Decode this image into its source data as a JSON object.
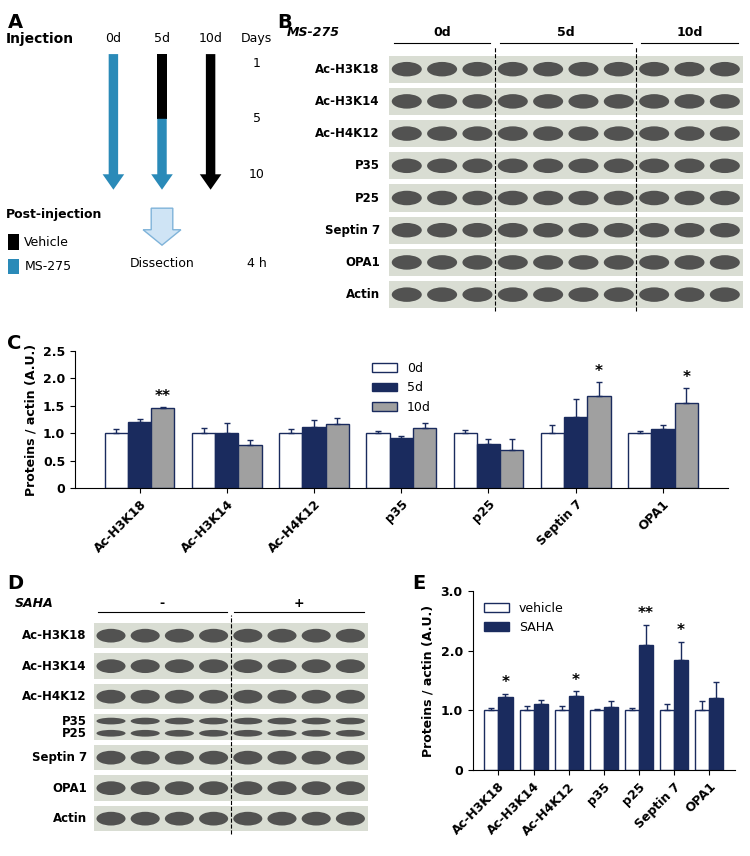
{
  "panel_labels": [
    "A",
    "B",
    "C",
    "D",
    "E"
  ],
  "diagram": {
    "injection_label": "Injection",
    "columns": [
      "0d",
      "5d",
      "10d"
    ],
    "days_label": "Days",
    "day_marks": [
      "1",
      "5",
      "10"
    ],
    "schedules": [
      [
        {
          "from": "1",
          "to": "10",
          "agent": "MS-275"
        }
      ],
      [
        {
          "from": "1",
          "to": "5",
          "agent": "Vehicle"
        },
        {
          "from": "5",
          "to": "10",
          "agent": "MS-275"
        }
      ],
      [
        {
          "from": "1",
          "to": "10",
          "agent": "Vehicle"
        }
      ]
    ],
    "post_injection_label": "Post-injection",
    "legend": [
      {
        "name": "Vehicle",
        "color": "#000000"
      },
      {
        "name": "MS-275",
        "color": "#2a8ab8"
      }
    ],
    "dissection_label": "Dissection",
    "time_label": "4 h"
  },
  "blots": [
    {
      "treatment": "MS-275",
      "groups": [
        {
          "label": "0d",
          "lanes": 3
        },
        {
          "label": "5d",
          "lanes": 4
        },
        {
          "label": "10d",
          "lanes": 3
        }
      ],
      "rows": [
        [
          "Ac-H3K18"
        ],
        [
          "Ac-H3K14"
        ],
        [
          "Ac-H4K12"
        ],
        [
          "P35"
        ],
        [
          "P25"
        ],
        [
          "Septin 7"
        ],
        [
          "OPA1"
        ],
        [
          "Actin"
        ]
      ]
    },
    {
      "treatment": "SAHA",
      "groups": [
        {
          "label": "-",
          "lanes": 4
        },
        {
          "label": "+",
          "lanes": 4
        }
      ],
      "rows": [
        [
          "Ac-H3K18"
        ],
        [
          "Ac-H3K14"
        ],
        [
          "Ac-H4K12"
        ],
        [
          "P35",
          "P25"
        ],
        [
          "Septin 7"
        ],
        [
          "OPA1"
        ],
        [
          "Actin"
        ]
      ]
    }
  ],
  "chart_data": [
    {
      "type": "bar",
      "ylabel": "Proteins / actin (A.U.)",
      "categories": [
        "Ac-H3K18",
        "Ac-H3K14",
        "Ac-H4K12",
        "p35",
        "p25",
        "Septin 7",
        "OPA1"
      ],
      "series": [
        {
          "name": "0d",
          "color": "#ffffff",
          "values": [
            1,
            1,
            1,
            1,
            1,
            1,
            1
          ],
          "errors": [
            0.08,
            0.1,
            0.08,
            0.03,
            0.05,
            0.15,
            0.03
          ]
        },
        {
          "name": "5d",
          "color": "#1a2b5e",
          "values": [
            1.2,
            1.0,
            1.12,
            0.92,
            0.8,
            1.3,
            1.08
          ],
          "errors": [
            0.05,
            0.18,
            0.12,
            0.03,
            0.1,
            0.32,
            0.07
          ]
        },
        {
          "name": "10d",
          "color": "#a0a0a0",
          "values": [
            1.45,
            0.78,
            1.17,
            1.1,
            0.7,
            1.68,
            1.55
          ],
          "errors": [
            0.03,
            0.1,
            0.1,
            0.08,
            0.2,
            0.25,
            0.27
          ]
        }
      ],
      "ylim": [
        0,
        2.5
      ],
      "yticks": [
        0,
        0.5,
        {
          "value": 1,
          "label": "1.0"
        },
        1.5,
        {
          "value": 2,
          "label": "2.0"
        },
        2.5
      ],
      "legend": "upper center",
      "annotations": [
        {
          "category": "Ac-H3K18",
          "series": "10d",
          "text": "**"
        },
        {
          "category": "Septin 7",
          "series": "10d",
          "text": "*"
        },
        {
          "category": "OPA1",
          "series": "10d",
          "text": "*"
        }
      ]
    },
    {
      "type": "bar",
      "ylabel": "Proteins / actin (A.U.)",
      "categories": [
        "Ac-H3K18",
        "Ac-H3K14",
        "Ac-H4K12",
        "p35",
        "p25",
        "Septin 7",
        "OPA1"
      ],
      "series": [
        {
          "name": "vehicle",
          "color": "#ffffff",
          "values": [
            1,
            1,
            1,
            1,
            1,
            1,
            1
          ],
          "errors": [
            0.04,
            0.07,
            0.08,
            0.03,
            0.04,
            0.1,
            0.15
          ]
        },
        {
          "name": "SAHA",
          "color": "#1a2b5e",
          "values": [
            1.22,
            1.1,
            1.25,
            1.05,
            2.1,
            1.85,
            1.2
          ],
          "errors": [
            0.06,
            0.07,
            0.07,
            0.1,
            0.33,
            0.3,
            0.28
          ]
        }
      ],
      "ylim": [
        0,
        3
      ],
      "yticks": [
        0,
        {
          "value": 1,
          "label": "1.0"
        },
        {
          "value": 2,
          "label": "2.0"
        },
        {
          "value": 3,
          "label": "3.0"
        }
      ],
      "legend": "upper left",
      "annotations": [
        {
          "category": "Ac-H3K18",
          "series": "SAHA",
          "text": "*"
        },
        {
          "category": "Ac-H4K12",
          "series": "SAHA",
          "text": "*"
        },
        {
          "category": "p25",
          "series": "SAHA",
          "text": "**"
        },
        {
          "category": "Septin 7",
          "series": "SAHA",
          "text": "*"
        }
      ]
    }
  ]
}
